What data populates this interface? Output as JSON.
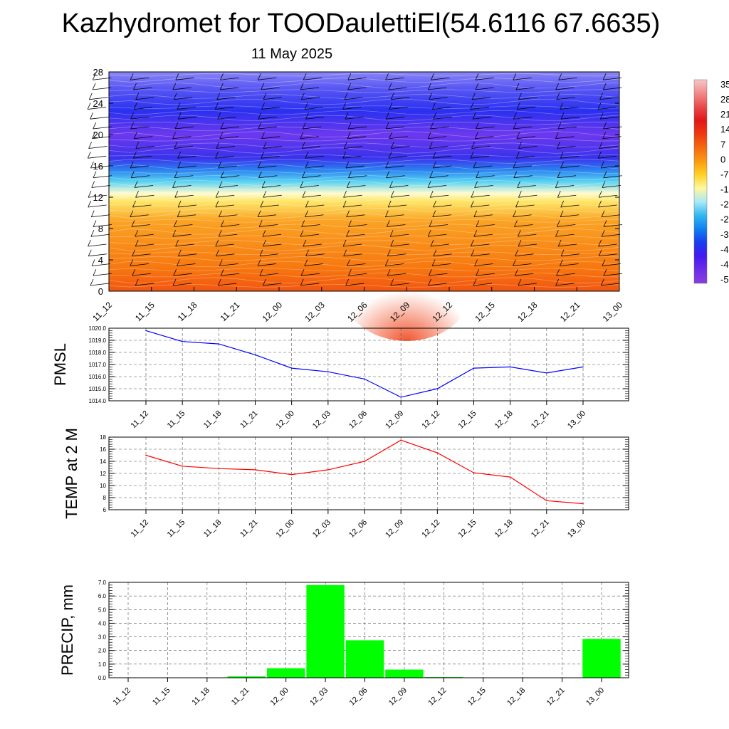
{
  "header": {
    "title": "Kazhydromet for TOODaulettiEl(54.6116 67.6635)",
    "subtitle": "11 May 2025"
  },
  "colors": {
    "pmsl_line": "#0000ff",
    "temp_line": "#ff0000",
    "precip_bar": "#00ff00",
    "grid": "#555555"
  },
  "chart_data": [
    {
      "type": "heatmap",
      "title": "",
      "xlabel": "",
      "ylabel": "",
      "x": [
        "11_12",
        "11_15",
        "11_18",
        "11_21",
        "12_00",
        "12_03",
        "12_06",
        "12_09",
        "12_12",
        "12_15",
        "12_18",
        "12_21",
        "13_00"
      ],
      "yticks": [
        0,
        4,
        8,
        12,
        16,
        20,
        24,
        28
      ],
      "ylim": [
        0,
        28
      ],
      "colorbar_labels": [
        "35",
        "28",
        "21",
        "14",
        "7",
        "0",
        "-7",
        "-1",
        "-2",
        "-2",
        "-3",
        "-4",
        "-4",
        "-5"
      ],
      "colorbar_colors": [
        "#f8c6c6",
        "#f28a8a",
        "#ea4a4a",
        "#e01818",
        "#ee3a10",
        "#f46a10",
        "#fa9a12",
        "#ffd226",
        "#fff7a0",
        "#a8e8f8",
        "#30b8f0",
        "#1080f0",
        "#1a3cf0",
        "#4418f0",
        "#6c2ee8",
        "#8a3ce0"
      ],
      "layers": [
        {
          "z": 0,
          "color": "#f25510"
        },
        {
          "z": 3,
          "color": "#f7780f"
        },
        {
          "z": 9,
          "color": "#fba324"
        },
        {
          "z": 11.5,
          "color": "#fee76a"
        },
        {
          "z": 12.5,
          "color": "#fffbd0"
        },
        {
          "z": 14,
          "color": "#58d2f2"
        },
        {
          "z": 15.5,
          "color": "#2a80f0"
        },
        {
          "z": 17,
          "color": "#3a32ec"
        },
        {
          "z": 20,
          "color": "#6c38ee"
        },
        {
          "z": 23,
          "color": "#2a30f0"
        },
        {
          "z": 26,
          "color": "#5a58f4"
        },
        {
          "z": 28,
          "color": "#8a86f6"
        }
      ],
      "warm_spot": {
        "x": "12_09",
        "color": "#ee3a0c"
      }
    },
    {
      "type": "line",
      "ylabel": "PMSL",
      "x": [
        "11_12",
        "11_15",
        "11_18",
        "11_21",
        "12_00",
        "12_03",
        "12_06",
        "12_09",
        "12_12",
        "12_15",
        "12_18",
        "12_21",
        "13_00"
      ],
      "yticks": [
        "1014.0",
        "1015.0",
        "1016.0",
        "1017.0",
        "1018.0",
        "1019.0",
        "1020.0"
      ],
      "ylim": [
        1014,
        1020
      ],
      "series": [
        {
          "values": [
            1019.8,
            1018.9,
            1018.7,
            1017.8,
            1016.7,
            1016.4,
            1015.8,
            1014.3,
            1015.0,
            1016.7,
            1016.8,
            1016.3,
            1016.8
          ]
        }
      ]
    },
    {
      "type": "line",
      "ylabel": "TEMP at 2 M",
      "x": [
        "11_12",
        "11_15",
        "11_18",
        "11_21",
        "12_00",
        "12_03",
        "12_06",
        "12_09",
        "12_12",
        "12_15",
        "12_18",
        "12_21",
        "13_00"
      ],
      "yticks": [
        "6",
        "8",
        "10",
        "12",
        "14",
        "16",
        "18"
      ],
      "ylim": [
        6,
        18
      ],
      "series": [
        {
          "values": [
            15.0,
            13.2,
            12.8,
            12.6,
            11.8,
            12.6,
            14.0,
            17.5,
            15.4,
            12.1,
            11.4,
            7.5,
            7.0
          ]
        }
      ]
    },
    {
      "type": "bar",
      "ylabel": "PRECIP, mm",
      "categories": [
        "11_12",
        "11_15",
        "11_18",
        "11_21",
        "12_00",
        "12_03",
        "12_06",
        "12_09",
        "12_12",
        "12_15",
        "12_18",
        "12_21",
        "13_00"
      ],
      "yticks": [
        "0.0",
        "1.0",
        "2.0",
        "3.0",
        "4.0",
        "5.0",
        "6.0",
        "7.0"
      ],
      "ylim": [
        0,
        7
      ],
      "values": [
        0.0,
        0.0,
        0.0,
        0.1,
        0.7,
        6.8,
        2.75,
        0.6,
        0.05,
        0.0,
        0.0,
        0.0,
        2.85
      ]
    }
  ]
}
